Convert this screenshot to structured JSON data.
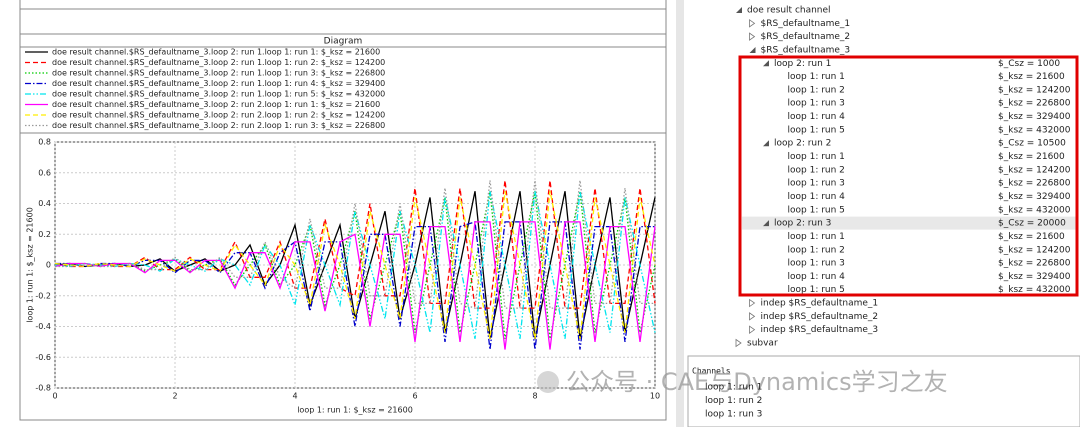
{
  "chart_data": {
    "type": "line",
    "title": "Diagram",
    "xlabel": "loop 1: run 1: $_ksz = 21600",
    "ylabel": "loop 1: run 1: $_ksz = 21600",
    "x": [
      0,
      0.25,
      0.5,
      0.75,
      1,
      1.25,
      1.5,
      1.75,
      2,
      2.25,
      2.5,
      2.75,
      3,
      3.25,
      3.5,
      3.75,
      4,
      4.25,
      4.5,
      4.75,
      5,
      5.25,
      5.5,
      5.75,
      6,
      6.25,
      6.5,
      6.75,
      7,
      7.25,
      7.5,
      7.75,
      8,
      8.25,
      8.5,
      8.75,
      9,
      9.25,
      9.5,
      9.75,
      10
    ],
    "xlim": [
      0,
      10
    ],
    "ylim": [
      -0.8,
      0.8
    ],
    "xticks": [
      0,
      2,
      4,
      6,
      8,
      10
    ],
    "yticks": [
      0.8,
      0.6,
      0.4,
      0.2,
      0,
      -0.2,
      -0.4,
      -0.6,
      -0.8
    ],
    "grid": true,
    "series": [
      {
        "name": "doe result channel.$RS_defaultname_3.loop 2: run 1.loop 1: run 1: $_ksz = 21600",
        "color": "#000000",
        "style": "solid",
        "values": [
          0,
          0.01,
          -0.01,
          0,
          0.01,
          -0.01,
          0,
          0.04,
          -0.04,
          0,
          0.04,
          -0.04,
          0,
          0.13,
          -0.13,
          0,
          0.26,
          -0.26,
          0,
          0.26,
          -0.35,
          0,
          0.35,
          -0.35,
          0,
          0.44,
          -0.44,
          0,
          0.48,
          -0.48,
          0,
          0.48,
          -0.48,
          0,
          0.48,
          -0.48,
          0,
          0.44,
          -0.44,
          0,
          0.44
        ]
      },
      {
        "name": "doe result channel.$RS_defaultname_3.loop 2: run 1.loop 1: run 2: $_ksz = 124200",
        "color": "#ff0000",
        "style": "dashed",
        "values": [
          0.01,
          -0.01,
          -0.01,
          0.01,
          -0.01,
          -0.01,
          0.05,
          -0.03,
          -0.03,
          0.05,
          -0.03,
          -0.03,
          0.15,
          -0.08,
          -0.08,
          0.15,
          -0.15,
          -0.15,
          0.3,
          -0.15,
          -0.2,
          0.4,
          -0.2,
          -0.2,
          0.5,
          -0.25,
          -0.25,
          0.5,
          -0.28,
          -0.28,
          0.55,
          -0.28,
          -0.28,
          0.55,
          -0.28,
          -0.28,
          0.5,
          -0.25,
          -0.25,
          0.5,
          -0.25
        ]
      },
      {
        "name": "doe result channel.$RS_defaultname_3.loop 2: run 1.loop 1: run 3: $_ksz = 226800",
        "color": "#00cc00",
        "style": "dotted",
        "values": [
          -0.01,
          0,
          0.01,
          -0.01,
          0,
          0.01,
          -0.04,
          0,
          0.04,
          -0.04,
          0,
          0.04,
          -0.13,
          0,
          0.13,
          -0.13,
          0,
          0.26,
          -0.26,
          0,
          0.35,
          -0.35,
          0,
          0.35,
          -0.44,
          0,
          0.44,
          -0.44,
          0,
          0.48,
          -0.48,
          0,
          0.48,
          -0.48,
          0,
          0.48,
          -0.44,
          0,
          0.44,
          -0.44,
          0
        ]
      },
      {
        "name": "doe result channel.$RS_defaultname_3.loop 2: run 1.loop 1: run 4: $_ksz = 329400",
        "color": "#0000cc",
        "style": "dashdot",
        "values": [
          0.01,
          0.01,
          -0.01,
          0.01,
          0.01,
          -0.01,
          0.03,
          0.03,
          -0.05,
          0.03,
          0.03,
          -0.05,
          0.08,
          0.08,
          -0.15,
          0.08,
          0.15,
          -0.3,
          0.15,
          0.15,
          -0.4,
          0.2,
          0.2,
          -0.4,
          0.25,
          0.25,
          -0.5,
          0.25,
          0.28,
          -0.55,
          0.28,
          0.28,
          -0.55,
          0.28,
          0.28,
          -0.55,
          0.25,
          0.25,
          -0.5,
          0.25,
          0.25
        ]
      },
      {
        "name": "doe result channel.$RS_defaultname_3.loop 2: run 1.loop 1: run 5: $_ksz = 432000",
        "color": "#00e5ee",
        "style": "dashdotdot",
        "values": [
          0,
          -0.01,
          0.01,
          0,
          -0.01,
          0.01,
          0,
          -0.04,
          0.04,
          0,
          -0.04,
          0.04,
          0,
          -0.13,
          0.13,
          0,
          -0.26,
          0.26,
          0,
          -0.26,
          0.35,
          0,
          -0.35,
          0.35,
          0,
          -0.44,
          0.44,
          0,
          -0.48,
          0.48,
          0,
          -0.48,
          0.48,
          0,
          -0.48,
          0.48,
          0,
          -0.44,
          0.44,
          0,
          -0.44
        ]
      },
      {
        "name": "doe result channel.$RS_defaultname_3.loop 2: run 2.loop 1: run 1: $_ksz = 21600",
        "color": "#ff00ff",
        "style": "solid",
        "values": [
          -0.01,
          0.01,
          0.01,
          -0.01,
          0.01,
          0.01,
          -0.05,
          0.03,
          0.03,
          -0.05,
          0.03,
          0.03,
          -0.15,
          0.08,
          0.08,
          -0.15,
          0.15,
          0.15,
          -0.3,
          0.15,
          0.2,
          -0.4,
          0.2,
          0.2,
          -0.5,
          0.25,
          0.25,
          -0.5,
          0.28,
          0.28,
          -0.55,
          0.28,
          0.28,
          -0.55,
          0.28,
          0.28,
          -0.5,
          0.25,
          0.25,
          -0.5,
          0.25
        ]
      },
      {
        "name": "doe result channel.$RS_defaultname_3.loop 2: run 2.loop 1: run 2: $_ksz = 124200",
        "color": "#ffee00",
        "style": "dashed",
        "values": [
          0.01,
          0,
          -0.01,
          0.01,
          0,
          -0.01,
          0.04,
          0,
          -0.04,
          0.04,
          0,
          -0.04,
          0.13,
          0,
          -0.13,
          0.13,
          0,
          -0.26,
          0.26,
          0,
          -0.35,
          0.35,
          0,
          -0.35,
          0.44,
          0,
          -0.44,
          0.44,
          0,
          -0.48,
          0.48,
          0,
          -0.48,
          0.48,
          0,
          -0.48,
          0.44,
          0,
          -0.44,
          0.44,
          0
        ]
      },
      {
        "name": "doe result channel.$RS_defaultname_3.loop 2: run 2.loop 1: run 3: $_ksz = 226800",
        "color": "#9a9a9a",
        "style": "dotted",
        "values": [
          -0.01,
          -0.01,
          0.01,
          -0.01,
          -0.01,
          0.01,
          -0.03,
          -0.03,
          0.05,
          -0.03,
          -0.03,
          0.05,
          -0.08,
          -0.08,
          0.15,
          -0.08,
          -0.15,
          0.3,
          -0.15,
          -0.15,
          0.4,
          -0.2,
          -0.2,
          0.4,
          -0.25,
          -0.25,
          0.5,
          -0.25,
          -0.28,
          0.55,
          -0.28,
          -0.28,
          0.55,
          -0.28,
          -0.28,
          0.55,
          -0.25,
          -0.25,
          0.5,
          -0.25,
          -0.25
        ]
      }
    ]
  },
  "tree": [
    {
      "label": "doe result channel",
      "children": [
        {
          "label": "$RS_defaultname_1"
        },
        {
          "label": "$RS_defaultname_2"
        },
        {
          "label": "$RS_defaultname_3",
          "children": [
            {
              "label": "loop 2: run 1",
              "value": "$_Csz = 1000",
              "children": [
                {
                  "label": "loop 1: run 1",
                  "value": "$_ksz = 21600"
                },
                {
                  "label": "loop 1: run 2",
                  "value": "$_ksz = 124200"
                },
                {
                  "label": "loop 1: run 3",
                  "value": "$_ksz = 226800"
                },
                {
                  "label": "loop 1: run 4",
                  "value": "$_ksz = 329400"
                },
                {
                  "label": "loop 1: run 5",
                  "value": "$_ksz = 432000"
                }
              ]
            },
            {
              "label": "loop 2: run 2",
              "value": "$_Csz = 10500",
              "children": [
                {
                  "label": "loop 1: run 1",
                  "value": "$_ksz = 21600"
                },
                {
                  "label": "loop 1: run 2",
                  "value": "$_ksz = 124200"
                },
                {
                  "label": "loop 1: run 3",
                  "value": "$_ksz = 226800"
                },
                {
                  "label": "loop 1: run 4",
                  "value": "$_ksz = 329400"
                },
                {
                  "label": "loop 1: run 5",
                  "value": "$_ksz = 432000"
                }
              ]
            },
            {
              "label": "loop 2: run 3",
              "value": "$_Csz = 20000",
              "children": [
                {
                  "label": "loop 1: run 1",
                  "value": "$_ksz = 21600"
                },
                {
                  "label": "loop 1: run 2",
                  "value": "$_ksz = 124200"
                },
                {
                  "label": "loop 1: run 3",
                  "value": "$_ksz = 226800"
                },
                {
                  "label": "loop 1: run 4",
                  "value": "$_ksz = 329400"
                },
                {
                  "label": "loop 1: run 5",
                  "value": "$_ksz = 432000"
                }
              ]
            }
          ]
        },
        {
          "label": "indep $RS_defaultname_1"
        },
        {
          "label": "indep $RS_defaultname_2"
        },
        {
          "label": "indep $RS_defaultname_3"
        }
      ]
    },
    {
      "label": "subvar"
    }
  ],
  "channels": {
    "title": "Channels",
    "items": [
      "loop 1: run 1",
      "loop 1: run 2",
      "loop 1: run 3"
    ]
  },
  "watermark": "公众号 · CAE与Dynamics学习之友"
}
